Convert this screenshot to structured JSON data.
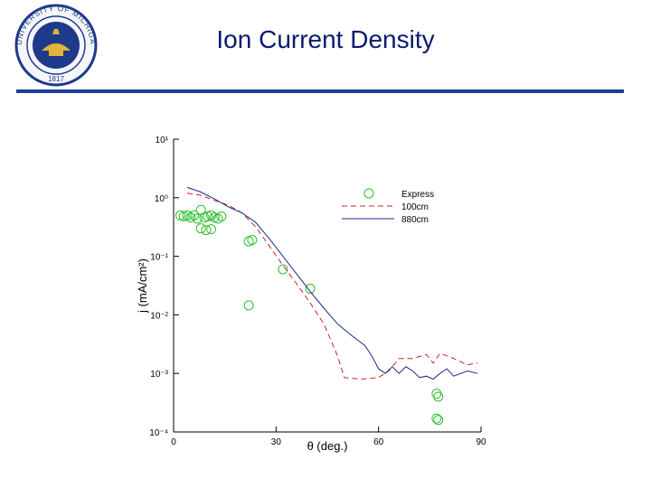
{
  "slide": {
    "title": "Ion Current Density",
    "seal_text": "UNIVERSITY OF MICHIGAN",
    "seal_year": "1817"
  },
  "colors": {
    "title": "#0a1a6e",
    "rule": "#1c3f94",
    "express": "#2fbf2f",
    "cm100": "#cc2222",
    "cm880": "#1a2a8a",
    "seal_blue": "#1f3a8a",
    "seal_gold": "#e0b43a"
  },
  "chart_data": {
    "type": "scatter",
    "xlabel": "θ (deg.)",
    "ylabel": "j (mA/cm²)",
    "xlim": [
      0,
      90
    ],
    "ylog": true,
    "ylim": [
      0.0001,
      10
    ],
    "x_ticks": [
      "0",
      "30",
      "60",
      "90"
    ],
    "y_ticks": [
      {
        "value": 10,
        "label": "10¹"
      },
      {
        "value": 1,
        "label": "10⁰"
      },
      {
        "value": 0.1,
        "label": "10⁻¹"
      },
      {
        "value": 0.01,
        "label": "10⁻²"
      },
      {
        "value": 0.001,
        "label": "10⁻³"
      },
      {
        "value": 0.0001,
        "label": "10⁻⁴"
      }
    ],
    "legend_placement": "top-right",
    "series": [
      {
        "name": "Express",
        "style": "circle",
        "points": [
          [
            2,
            0.5
          ],
          [
            3,
            0.48
          ],
          [
            4,
            0.5
          ],
          [
            5,
            0.46
          ],
          [
            6,
            0.5
          ],
          [
            7,
            0.44
          ],
          [
            8,
            0.62
          ],
          [
            9,
            0.46
          ],
          [
            10,
            0.48
          ],
          [
            11,
            0.5
          ],
          [
            12,
            0.46
          ],
          [
            13,
            0.44
          ],
          [
            14,
            0.48
          ],
          [
            8,
            0.3
          ],
          [
            9.5,
            0.28
          ],
          [
            11,
            0.29
          ],
          [
            22,
            0.18
          ],
          [
            23,
            0.19
          ],
          [
            32,
            0.06
          ],
          [
            40,
            0.028
          ],
          [
            22,
            0.0145
          ],
          [
            77,
            0.00045
          ],
          [
            77.5,
            0.0004
          ],
          [
            77,
            0.00017
          ],
          [
            77.5,
            0.00016
          ]
        ]
      },
      {
        "name": "100cm",
        "style": "dashed",
        "points": [
          [
            4,
            1.2
          ],
          [
            8,
            1.1
          ],
          [
            12,
            0.9
          ],
          [
            16,
            0.75
          ],
          [
            20,
            0.55
          ],
          [
            24,
            0.32
          ],
          [
            28,
            0.15
          ],
          [
            32,
            0.07
          ],
          [
            36,
            0.034
          ],
          [
            40,
            0.016
          ],
          [
            44,
            0.007
          ],
          [
            48,
            0.002
          ],
          [
            50,
            0.00085
          ],
          [
            55,
            0.0008
          ],
          [
            60,
            0.00085
          ],
          [
            63,
            0.0011
          ],
          [
            66,
            0.0018
          ],
          [
            70,
            0.0018
          ],
          [
            74,
            0.0021
          ],
          [
            76,
            0.0015
          ],
          [
            78,
            0.0022
          ],
          [
            82,
            0.0018
          ],
          [
            86,
            0.0014
          ],
          [
            89,
            0.0015
          ]
        ]
      },
      {
        "name": "880cm",
        "style": "solid",
        "points": [
          [
            4,
            1.5
          ],
          [
            8,
            1.25
          ],
          [
            12,
            0.95
          ],
          [
            16,
            0.7
          ],
          [
            20,
            0.55
          ],
          [
            24,
            0.38
          ],
          [
            28,
            0.2
          ],
          [
            32,
            0.1
          ],
          [
            36,
            0.05
          ],
          [
            40,
            0.025
          ],
          [
            44,
            0.013
          ],
          [
            48,
            0.007
          ],
          [
            52,
            0.0045
          ],
          [
            56,
            0.003
          ],
          [
            58,
            0.002
          ],
          [
            60,
            0.0012
          ],
          [
            62,
            0.001
          ],
          [
            64,
            0.0013
          ],
          [
            66,
            0.001
          ],
          [
            68,
            0.0013
          ],
          [
            70,
            0.0011
          ],
          [
            72,
            0.00085
          ],
          [
            74,
            0.0009
          ],
          [
            76,
            0.0008
          ],
          [
            78,
            0.001
          ],
          [
            80,
            0.0012
          ],
          [
            82,
            0.0009
          ],
          [
            86,
            0.0011
          ],
          [
            89,
            0.001
          ]
        ]
      }
    ]
  }
}
